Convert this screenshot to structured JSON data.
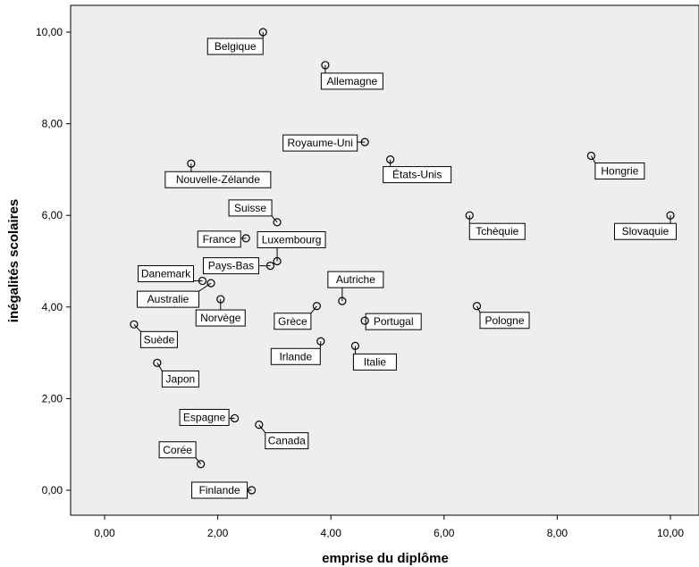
{
  "chart_data": {
    "type": "scatter",
    "xlabel": "emprise du diplôme",
    "ylabel": "inégalités scolaires",
    "xlim": [
      -0.6,
      10.5
    ],
    "ylim": [
      -0.55,
      10.6
    ],
    "x_ticks": [
      "0,00",
      "2,00",
      "4,00",
      "6,00",
      "8,00",
      "10,00"
    ],
    "y_ticks": [
      "0,00",
      "2,00",
      "4,00",
      "6,00",
      "8,00",
      "10,00"
    ],
    "grid": false,
    "colors": {
      "plot_background": "#eeeeee",
      "marker": "#000000"
    },
    "points": [
      {
        "label": "Belgique",
        "x": 2.8,
        "y": 10.0
      },
      {
        "label": "Allemagne",
        "x": 3.9,
        "y": 9.28
      },
      {
        "label": "Royaume-Uni",
        "x": 4.6,
        "y": 7.6
      },
      {
        "label": "États-Unis",
        "x": 5.05,
        "y": 7.22
      },
      {
        "label": "Hongrie",
        "x": 8.6,
        "y": 7.3
      },
      {
        "label": "Nouvelle-Zélande",
        "x": 1.53,
        "y": 7.13
      },
      {
        "label": "Tchèquie",
        "x": 6.45,
        "y": 6.0
      },
      {
        "label": "Slovaquie",
        "x": 10.0,
        "y": 6.0
      },
      {
        "label": "Suisse",
        "x": 3.05,
        "y": 5.85
      },
      {
        "label": "France",
        "x": 2.5,
        "y": 5.5
      },
      {
        "label": "Luxembourg",
        "x": 3.05,
        "y": 5.0
      },
      {
        "label": "Pays-Bas",
        "x": 2.93,
        "y": 4.9
      },
      {
        "label": "Danemark",
        "x": 1.73,
        "y": 4.57
      },
      {
        "label": "Australie",
        "x": 1.88,
        "y": 4.52
      },
      {
        "label": "Norvège",
        "x": 2.05,
        "y": 4.17
      },
      {
        "label": "Autriche",
        "x": 4.2,
        "y": 4.13
      },
      {
        "label": "Grèce",
        "x": 3.75,
        "y": 4.02
      },
      {
        "label": "Pologne",
        "x": 6.58,
        "y": 4.02
      },
      {
        "label": "Portugal",
        "x": 4.6,
        "y": 3.7
      },
      {
        "label": "Suède",
        "x": 0.52,
        "y": 3.62
      },
      {
        "label": "Irlande",
        "x": 3.82,
        "y": 3.25
      },
      {
        "label": "Italie",
        "x": 4.43,
        "y": 3.15
      },
      {
        "label": "Japon",
        "x": 0.93,
        "y": 2.78
      },
      {
        "label": "Espagne",
        "x": 2.3,
        "y": 1.57
      },
      {
        "label": "Canada",
        "x": 2.73,
        "y": 1.43
      },
      {
        "label": "Corée",
        "x": 1.7,
        "y": 0.57
      },
      {
        "label": "Finlande",
        "x": 2.6,
        "y": 0.0
      }
    ]
  }
}
